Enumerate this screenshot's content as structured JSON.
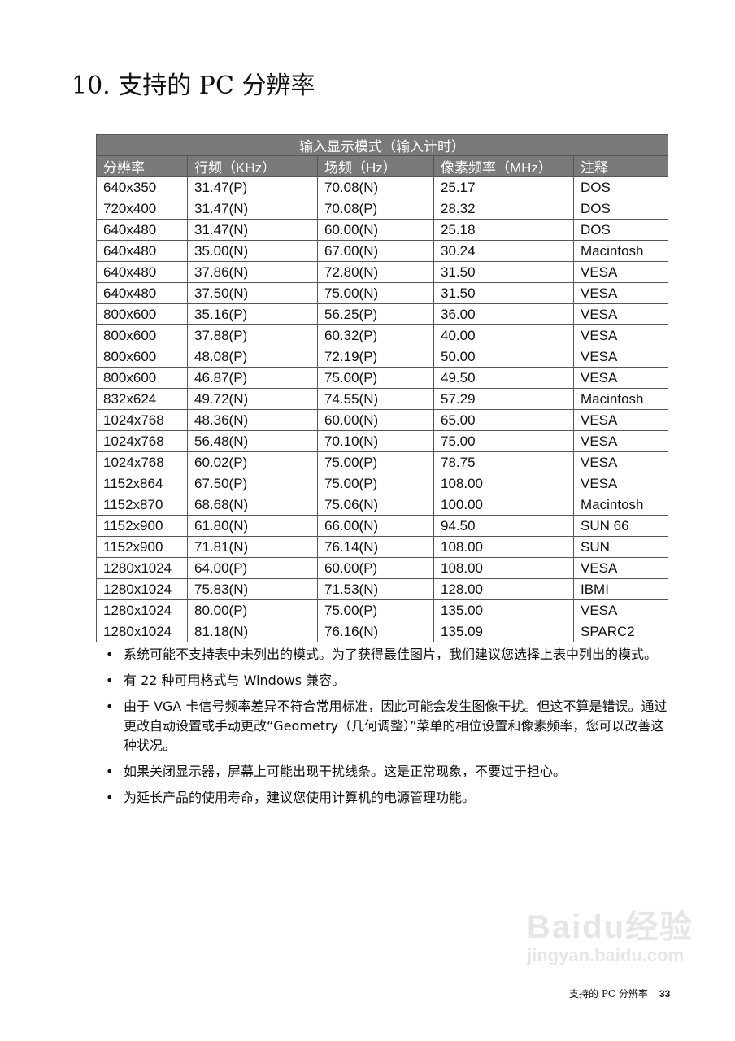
{
  "title": "10. 支持的 PC 分辨率",
  "table": {
    "caption": "输入显示模式（输入计时）",
    "headers": [
      "分辨率",
      "行频（KHz）",
      "场频（Hz）",
      "像素频率（MHz）",
      "注释"
    ],
    "rows": [
      [
        "640x350",
        "31.47(P)",
        "70.08(N)",
        "25.17",
        "DOS"
      ],
      [
        "720x400",
        "31.47(N)",
        "70.08(P)",
        "28.32",
        "DOS"
      ],
      [
        "640x480",
        "31.47(N)",
        "60.00(N)",
        "25.18",
        "DOS"
      ],
      [
        "640x480",
        "35.00(N)",
        "67.00(N)",
        "30.24",
        "Macintosh"
      ],
      [
        "640x480",
        "37.86(N)",
        "72.80(N)",
        "31.50",
        "VESA"
      ],
      [
        "640x480",
        "37.50(N)",
        "75.00(N)",
        "31.50",
        "VESA"
      ],
      [
        "800x600",
        "35.16(P)",
        "56.25(P)",
        "36.00",
        "VESA"
      ],
      [
        "800x600",
        "37.88(P)",
        "60.32(P)",
        "40.00",
        "VESA"
      ],
      [
        "800x600",
        "48.08(P)",
        "72.19(P)",
        "50.00",
        "VESA"
      ],
      [
        "800x600",
        "46.87(P)",
        "75.00(P)",
        "49.50",
        "VESA"
      ],
      [
        "832x624",
        "49.72(N)",
        "74.55(N)",
        "57.29",
        "Macintosh"
      ],
      [
        "1024x768",
        "48.36(N)",
        "60.00(N)",
        "65.00",
        "VESA"
      ],
      [
        "1024x768",
        "56.48(N)",
        "70.10(N)",
        "75.00",
        "VESA"
      ],
      [
        "1024x768",
        "60.02(P)",
        "75.00(P)",
        "78.75",
        "VESA"
      ],
      [
        "1152x864",
        "67.50(P)",
        "75.00(P)",
        "108.00",
        "VESA"
      ],
      [
        "1152x870",
        "68.68(N)",
        "75.06(N)",
        "100.00",
        "Macintosh"
      ],
      [
        "1152x900",
        "61.80(N)",
        "66.00(N)",
        "94.50",
        "SUN 66"
      ],
      [
        "1152x900",
        "71.81(N)",
        "76.14(N)",
        "108.00",
        "SUN"
      ],
      [
        "1280x1024",
        "64.00(P)",
        "60.00(P)",
        "108.00",
        "VESA"
      ],
      [
        "1280x1024",
        "75.83(N)",
        "71.53(N)",
        "128.00",
        "IBMI"
      ],
      [
        "1280x1024",
        "80.00(P)",
        "75.00(P)",
        "135.00",
        "VESA"
      ],
      [
        "1280x1024",
        "81.18(N)",
        "76.16(N)",
        "135.09",
        "SPARC2"
      ]
    ]
  },
  "notes": [
    "系统可能不支持表中未列出的模式。为了获得最佳图片，我们建议您选择上表中列出的模式。",
    "有 22 种可用格式与 Windows 兼容。",
    "由于 VGA 卡信号频率差异不符合常用标准，因此可能会发生图像干扰。但这不算是错误。通过更改自动设置或手动更改“Geometry（几何调整）”菜单的相位设置和像素频率，您可以改善这种状况。",
    "如果关闭显示器，屏幕上可能出现干扰线条。这是正常现象，不要过于担心。",
    "为延长产品的使用寿命，建议您使用计算机的电源管理功能。"
  ],
  "watermark": {
    "logo": "Baidu经验",
    "url": "jingyan.baidu.com"
  },
  "footer": {
    "section": "支持的 PC 分辨率",
    "page": "33"
  }
}
